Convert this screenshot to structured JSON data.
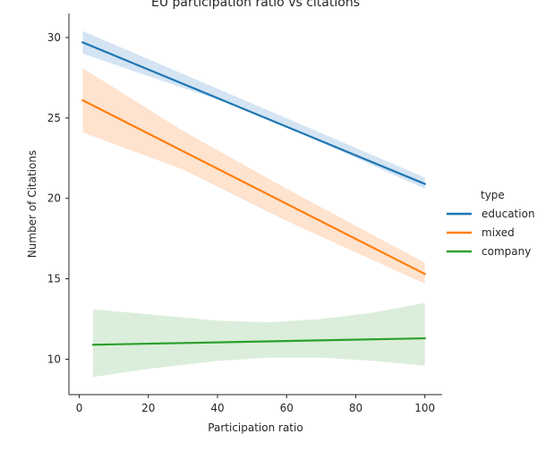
{
  "chart_data": {
    "type": "line",
    "title": "EU participation ratio vs citations",
    "xlabel": "Participation ratio",
    "ylabel": "Number of Citations",
    "xlim": [
      -3,
      105
    ],
    "ylim": [
      7.8,
      31.5
    ],
    "xticks": [
      0,
      20,
      40,
      60,
      80,
      100
    ],
    "yticks": [
      10,
      15,
      20,
      25,
      30
    ],
    "grid": false,
    "legend": {
      "title": "type",
      "placement": "right"
    },
    "series": [
      {
        "name": "education",
        "color": "#1f77b4",
        "band_color": "#c6dbef",
        "x": [
          1,
          100
        ],
        "y": [
          29.7,
          20.9
        ],
        "band_x": [
          1,
          50,
          100
        ],
        "band_lower": [
          29.0,
          25.4,
          20.6
        ],
        "band_upper": [
          30.4,
          25.9,
          21.3
        ]
      },
      {
        "name": "mixed",
        "color": "#ff7f0e",
        "band_color": "#fdd9bf",
        "x": [
          1,
          100
        ],
        "y": [
          26.1,
          15.3
        ],
        "band_x": [
          1,
          30,
          60,
          100
        ],
        "band_lower": [
          24.1,
          21.8,
          18.6,
          14.7
        ],
        "band_upper": [
          28.1,
          24.2,
          20.6,
          16.0
        ]
      },
      {
        "name": "company",
        "color": "#2ca02c",
        "band_color": "#cfe8cf",
        "x": [
          4,
          100
        ],
        "y": [
          10.9,
          11.3
        ],
        "band_x": [
          4,
          20,
          40,
          55,
          70,
          85,
          100
        ],
        "band_lower": [
          8.9,
          9.4,
          9.9,
          10.1,
          10.1,
          9.9,
          9.6
        ],
        "band_upper": [
          13.1,
          12.8,
          12.4,
          12.3,
          12.5,
          12.9,
          13.5
        ]
      }
    ]
  }
}
